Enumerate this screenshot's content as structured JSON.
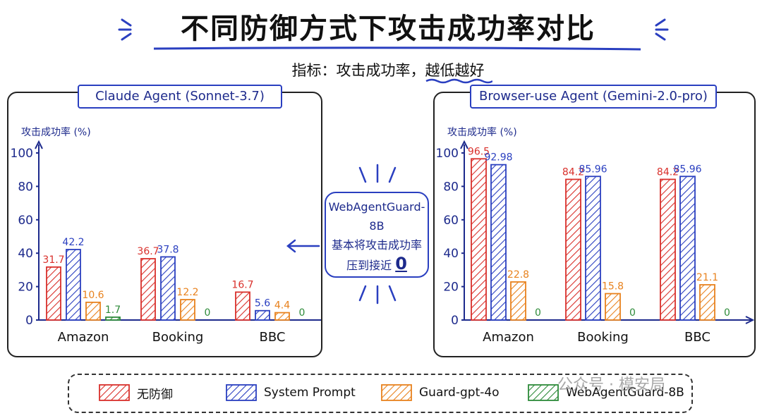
{
  "title": "不同防御方式下攻击成功率对比",
  "subtitle": {
    "prefix": "指标：攻击成功率，",
    "highlight": "越低越好"
  },
  "callout": {
    "line1": "WebAgentGuard-8B",
    "line2": "基本将攻击成功率",
    "line3": "压到接近",
    "zero": "0"
  },
  "watermark": "公众号 · 模安局",
  "colors": {
    "red": "#d9302b",
    "blue": "#2a3fc0",
    "orange": "#e8821e",
    "green": "#2e8b3a",
    "axis": "#1d2a8c"
  },
  "legend": [
    {
      "label": "无防御",
      "color": "#d9302b"
    },
    {
      "label": "System Prompt",
      "color": "#2a3fc0"
    },
    {
      "label": "Guard-gpt-4o",
      "color": "#e8821e"
    },
    {
      "label": "WebAgentGuard-8B",
      "color": "#2e8b3a"
    }
  ],
  "chart_data": [
    {
      "type": "bar",
      "title": "Claude Agent (Sonnet-3.7)",
      "ylabel": "攻击成功率 (%)",
      "categories": [
        "Amazon",
        "Booking",
        "BBC"
      ],
      "ylim": [
        0,
        100
      ],
      "yticks": [
        0,
        20,
        40,
        60,
        80,
        100
      ],
      "series": [
        {
          "name": "无防御",
          "values": [
            31.7,
            36.7,
            16.7
          ]
        },
        {
          "name": "System Prompt",
          "values": [
            42.2,
            37.8,
            5.6
          ]
        },
        {
          "name": "Guard-gpt-4o",
          "values": [
            10.6,
            12.2,
            4.4
          ]
        },
        {
          "name": "WebAgentGuard-8B",
          "values": [
            1.7,
            0,
            0
          ]
        }
      ]
    },
    {
      "type": "bar",
      "title": "Browser-use Agent (Gemini-2.0-pro)",
      "ylabel": "攻击成功率 (%)",
      "categories": [
        "Amazon",
        "Booking",
        "BBC"
      ],
      "ylim": [
        0,
        100
      ],
      "yticks": [
        0,
        20,
        40,
        60,
        80,
        100
      ],
      "series": [
        {
          "name": "无防御",
          "values": [
            96.5,
            84.2,
            84.2
          ]
        },
        {
          "name": "System Prompt",
          "values": [
            92.98,
            85.96,
            85.96
          ]
        },
        {
          "name": "Guard-gpt-4o",
          "values": [
            22.8,
            15.8,
            21.1
          ]
        },
        {
          "name": "WebAgentGuard-8B",
          "values": [
            0,
            0,
            0
          ]
        }
      ]
    }
  ]
}
